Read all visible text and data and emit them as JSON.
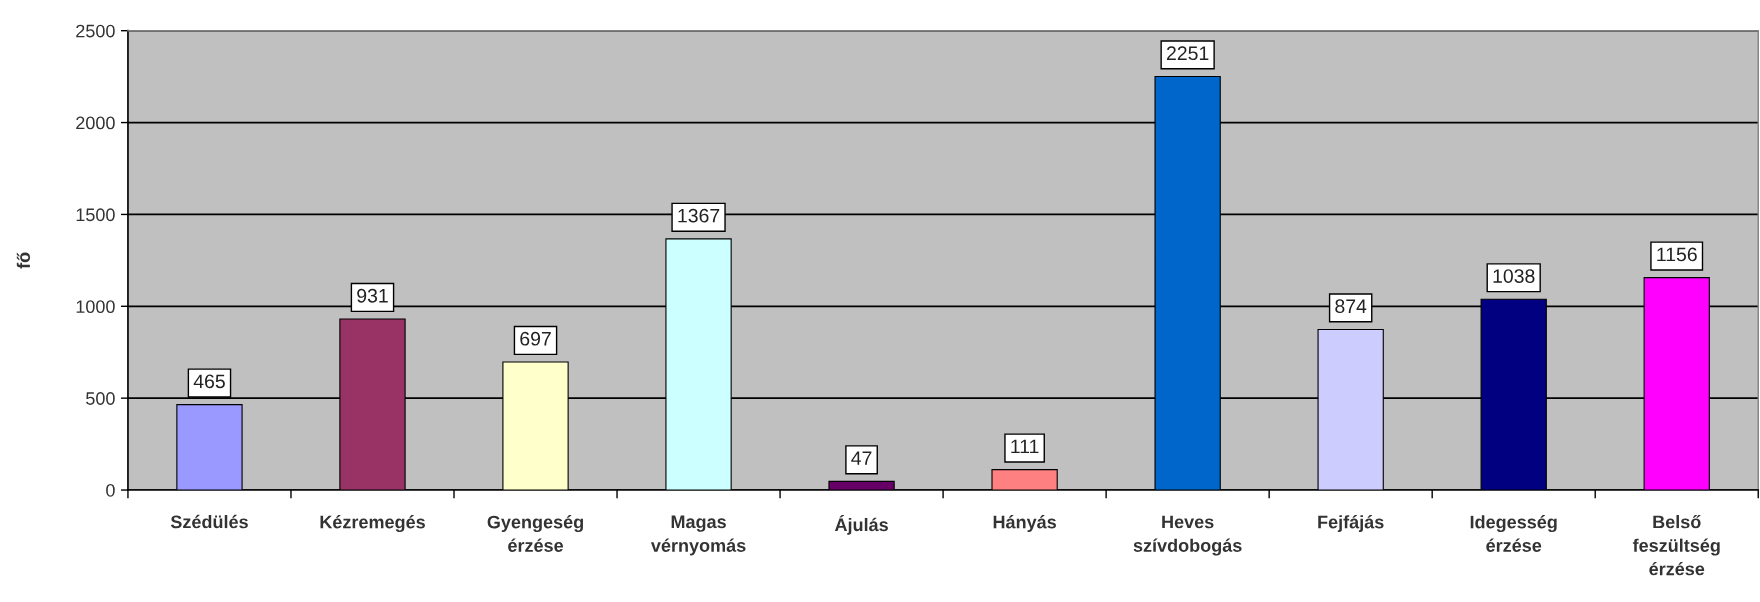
{
  "chart_data": {
    "type": "bar",
    "ylabel": "fő",
    "categories": [
      "Szédülés",
      "Kézremegés",
      "Gyengeség\nérzése",
      "Magas\nvérnyomás",
      "Ájulás",
      "Hányás",
      "Heves\nszívdobogás",
      "Fejfájás",
      "Idegesség\nérzése",
      "Belső\nfeszültség\nérzése"
    ],
    "values": [
      465,
      931,
      697,
      1367,
      47,
      111,
      2251,
      874,
      1038,
      1156
    ],
    "colors": [
      "#9999ff",
      "#993366",
      "#ffffcc",
      "#ccffff",
      "#660066",
      "#ff8080",
      "#0066cc",
      "#ccccff",
      "#000080",
      "#ff00ff"
    ],
    "ylim": [
      0,
      2500
    ],
    "yticks": [
      0,
      500,
      1000,
      1500,
      2000,
      2500
    ],
    "grid": "y",
    "data_labels": true
  }
}
